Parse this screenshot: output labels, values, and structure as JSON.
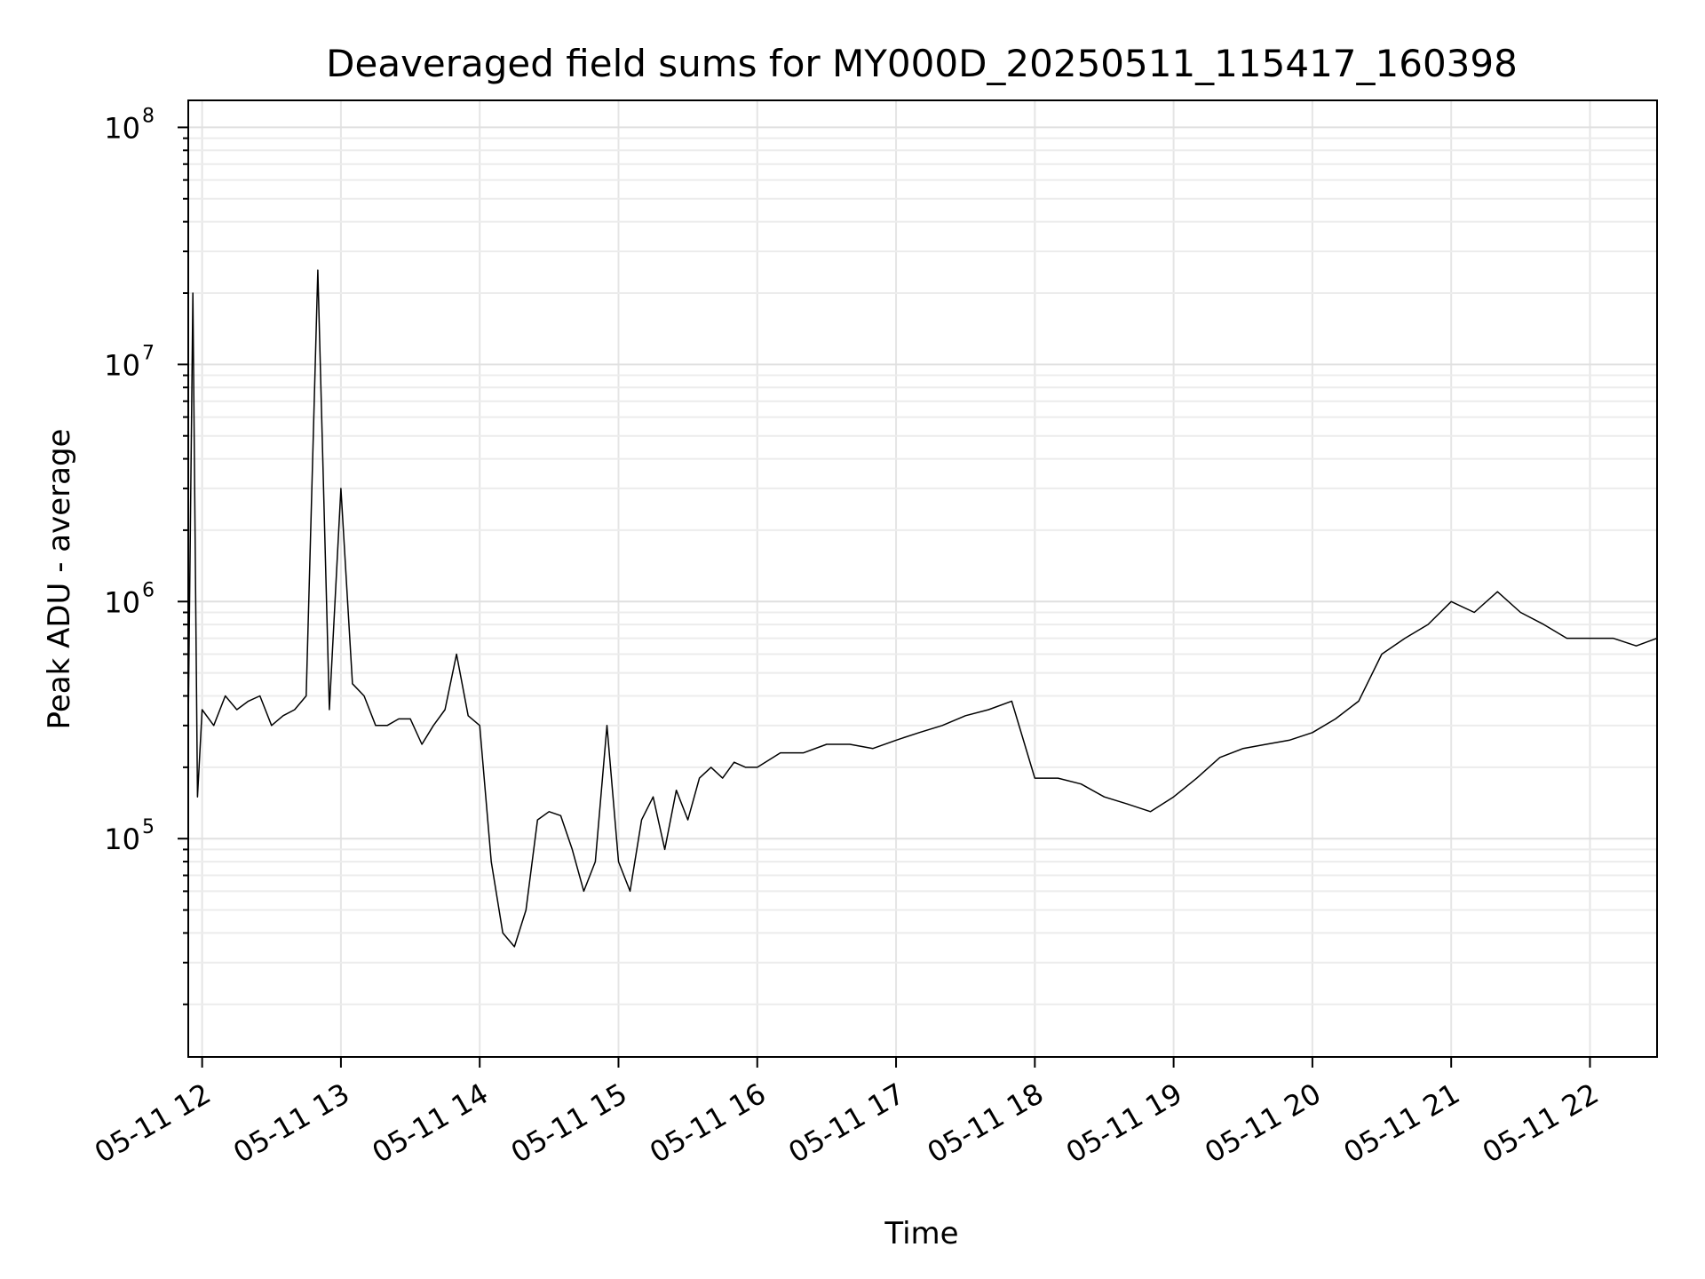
{
  "chart_data": {
    "type": "line",
    "title": "Deaveraged field sums for MY000D_20250511_115417_160398",
    "xlabel": "Time",
    "ylabel": "Peak ADU - average",
    "yscale": "log",
    "ylim": [
      12000,
      130000000
    ],
    "xlim": [
      "2025-05-11 11:54",
      "2025-05-11 22:29"
    ],
    "grid": true,
    "line_color": "#000000",
    "x_ticks": [
      {
        "t": "2025-05-11 12:00",
        "label": "05-11 12"
      },
      {
        "t": "2025-05-11 13:00",
        "label": "05-11 13"
      },
      {
        "t": "2025-05-11 14:00",
        "label": "05-11 14"
      },
      {
        "t": "2025-05-11 15:00",
        "label": "05-11 15"
      },
      {
        "t": "2025-05-11 16:00",
        "label": "05-11 16"
      },
      {
        "t": "2025-05-11 17:00",
        "label": "05-11 17"
      },
      {
        "t": "2025-05-11 18:00",
        "label": "05-11 18"
      },
      {
        "t": "2025-05-11 19:00",
        "label": "05-11 19"
      },
      {
        "t": "2025-05-11 20:00",
        "label": "05-11 20"
      },
      {
        "t": "2025-05-11 21:00",
        "label": "05-11 21"
      },
      {
        "t": "2025-05-11 22:00",
        "label": "05-11 22"
      }
    ],
    "y_ticks": [
      {
        "value": 100000,
        "base": "10",
        "exp": "5"
      },
      {
        "value": 1000000,
        "base": "10",
        "exp": "6"
      },
      {
        "value": 10000000,
        "base": "10",
        "exp": "7"
      },
      {
        "value": 100000000,
        "base": "10",
        "exp": "8"
      }
    ],
    "series": [
      {
        "x": [
          "2025-05-11 11:54",
          "2025-05-11 11:56",
          "2025-05-11 11:58",
          "2025-05-11 12:00",
          "2025-05-11 12:05",
          "2025-05-11 12:10",
          "2025-05-11 12:15",
          "2025-05-11 12:20",
          "2025-05-11 12:25",
          "2025-05-11 12:30",
          "2025-05-11 12:35",
          "2025-05-11 12:40",
          "2025-05-11 12:45",
          "2025-05-11 12:50",
          "2025-05-11 12:55",
          "2025-05-11 13:00",
          "2025-05-11 13:05",
          "2025-05-11 13:10",
          "2025-05-11 13:15",
          "2025-05-11 13:20",
          "2025-05-11 13:25",
          "2025-05-11 13:30",
          "2025-05-11 13:35",
          "2025-05-11 13:40",
          "2025-05-11 13:45",
          "2025-05-11 13:50",
          "2025-05-11 13:55",
          "2025-05-11 14:00",
          "2025-05-11 14:05",
          "2025-05-11 14:10",
          "2025-05-11 14:15",
          "2025-05-11 14:20",
          "2025-05-11 14:25",
          "2025-05-11 14:30",
          "2025-05-11 14:35",
          "2025-05-11 14:40",
          "2025-05-11 14:45",
          "2025-05-11 14:50",
          "2025-05-11 14:55",
          "2025-05-11 15:00",
          "2025-05-11 15:05",
          "2025-05-11 15:10",
          "2025-05-11 15:15",
          "2025-05-11 15:20",
          "2025-05-11 15:25",
          "2025-05-11 15:30",
          "2025-05-11 15:35",
          "2025-05-11 15:40",
          "2025-05-11 15:45",
          "2025-05-11 15:50",
          "2025-05-11 15:55",
          "2025-05-11 16:00",
          "2025-05-11 16:10",
          "2025-05-11 16:20",
          "2025-05-11 16:30",
          "2025-05-11 16:40",
          "2025-05-11 16:50",
          "2025-05-11 17:00",
          "2025-05-11 17:10",
          "2025-05-11 17:20",
          "2025-05-11 17:30",
          "2025-05-11 17:40",
          "2025-05-11 17:50",
          "2025-05-11 18:00",
          "2025-05-11 18:10",
          "2025-05-11 18:20",
          "2025-05-11 18:30",
          "2025-05-11 18:40",
          "2025-05-11 18:50",
          "2025-05-11 19:00",
          "2025-05-11 19:10",
          "2025-05-11 19:20",
          "2025-05-11 19:30",
          "2025-05-11 19:40",
          "2025-05-11 19:50",
          "2025-05-11 20:00",
          "2025-05-11 20:10",
          "2025-05-11 20:20",
          "2025-05-11 20:30",
          "2025-05-11 20:40",
          "2025-05-11 20:50",
          "2025-05-11 21:00",
          "2025-05-11 21:10",
          "2025-05-11 21:20",
          "2025-05-11 21:30",
          "2025-05-11 21:40",
          "2025-05-11 21:50",
          "2025-05-11 22:00",
          "2025-05-11 22:10",
          "2025-05-11 22:20",
          "2025-05-11 22:29"
        ],
        "y": [
          300000,
          20000000,
          150000,
          350000,
          300000,
          400000,
          350000,
          380000,
          400000,
          300000,
          330000,
          350000,
          400000,
          25000000,
          350000,
          3000000,
          450000,
          400000,
          300000,
          300000,
          320000,
          320000,
          250000,
          300000,
          350000,
          600000,
          330000,
          300000,
          80000,
          40000,
          35000,
          50000,
          120000,
          130000,
          125000,
          90000,
          60000,
          80000,
          300000,
          80000,
          60000,
          120000,
          150000,
          90000,
          160000,
          120000,
          180000,
          200000,
          180000,
          210000,
          200000,
          200000,
          230000,
          230000,
          250000,
          250000,
          240000,
          260000,
          280000,
          300000,
          330000,
          350000,
          380000,
          180000,
          180000,
          170000,
          150000,
          140000,
          130000,
          150000,
          180000,
          220000,
          240000,
          250000,
          260000,
          280000,
          320000,
          380000,
          600000,
          700000,
          800000,
          1000000,
          900000,
          1100000,
          900000,
          800000,
          700000,
          700000,
          700000,
          650000,
          700000
        ]
      }
    ]
  }
}
